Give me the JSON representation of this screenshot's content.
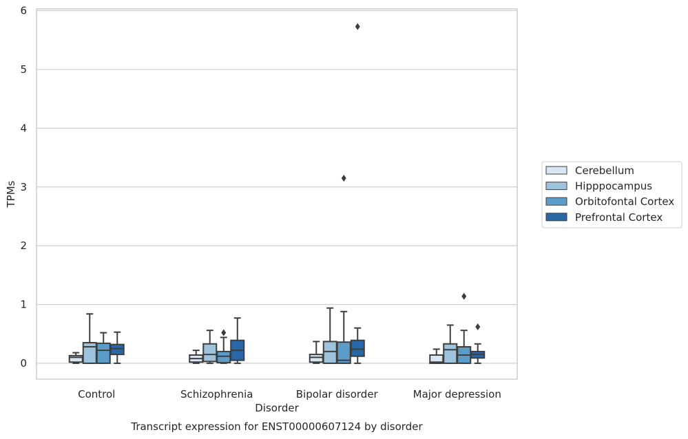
{
  "chart_data": {
    "type": "box",
    "title": "",
    "caption": "Transcript expression for ENST00000607124 by disorder",
    "xlabel": "Disorder",
    "ylabel": "TPMs",
    "ylim": [
      -0.27,
      6.03
    ],
    "yticks": [
      0,
      1,
      2,
      3,
      4,
      5,
      6
    ],
    "grid": "horizontal",
    "legend_position": "right",
    "categories": [
      "Control",
      "Schizophrenia",
      "Bipolar disorder",
      "Major depression"
    ],
    "series": [
      {
        "name": "Cerebellum",
        "color": "#d8e6f4",
        "boxes": [
          {
            "whislo": 0.0,
            "q1": 0.02,
            "med": 0.1,
            "q3": 0.13,
            "whishi": 0.18,
            "fliers": []
          },
          {
            "whislo": 0.0,
            "q1": 0.02,
            "med": 0.08,
            "q3": 0.14,
            "whishi": 0.22,
            "fliers": []
          },
          {
            "whislo": 0.0,
            "q1": 0.02,
            "med": 0.1,
            "q3": 0.15,
            "whishi": 0.37,
            "fliers": []
          },
          {
            "whislo": 0.0,
            "q1": 0.0,
            "med": 0.02,
            "q3": 0.14,
            "whishi": 0.24,
            "fliers": []
          }
        ]
      },
      {
        "name": "Hipppocampus",
        "color": "#9dc3dd",
        "boxes": [
          {
            "whislo": 0.0,
            "q1": 0.0,
            "med": 0.28,
            "q3": 0.35,
            "whishi": 0.84,
            "fliers": []
          },
          {
            "whislo": 0.0,
            "q1": 0.03,
            "med": 0.15,
            "q3": 0.33,
            "whishi": 0.56,
            "fliers": []
          },
          {
            "whislo": 0.0,
            "q1": 0.0,
            "med": 0.2,
            "q3": 0.37,
            "whishi": 0.94,
            "fliers": []
          },
          {
            "whislo": 0.0,
            "q1": 0.0,
            "med": 0.23,
            "q3": 0.33,
            "whishi": 0.65,
            "fliers": []
          }
        ]
      },
      {
        "name": "Orbitofontal Cortex",
        "color": "#5b9cc8",
        "boxes": [
          {
            "whislo": 0.0,
            "q1": 0.0,
            "med": 0.22,
            "q3": 0.34,
            "whishi": 0.52,
            "fliers": []
          },
          {
            "whislo": 0.0,
            "q1": 0.01,
            "med": 0.12,
            "q3": 0.2,
            "whishi": 0.44,
            "fliers": [
              0.52
            ]
          },
          {
            "whislo": 0.0,
            "q1": 0.0,
            "med": 0.05,
            "q3": 0.36,
            "whishi": 0.88,
            "fliers": [
              3.15
            ]
          },
          {
            "whislo": 0.0,
            "q1": 0.0,
            "med": 0.14,
            "q3": 0.28,
            "whishi": 0.56,
            "fliers": [
              1.14
            ]
          }
        ]
      },
      {
        "name": "Prefrontal Cortex",
        "color": "#2868a8",
        "boxes": [
          {
            "whislo": 0.0,
            "q1": 0.15,
            "med": 0.25,
            "q3": 0.32,
            "whishi": 0.53,
            "fliers": []
          },
          {
            "whislo": 0.0,
            "q1": 0.05,
            "med": 0.22,
            "q3": 0.39,
            "whishi": 0.77,
            "fliers": []
          },
          {
            "whislo": 0.0,
            "q1": 0.12,
            "med": 0.24,
            "q3": 0.39,
            "whishi": 0.6,
            "fliers": [
              5.73
            ]
          },
          {
            "whislo": 0.0,
            "q1": 0.09,
            "med": 0.15,
            "q3": 0.2,
            "whishi": 0.33,
            "fliers": [
              0.62
            ]
          }
        ]
      }
    ]
  }
}
